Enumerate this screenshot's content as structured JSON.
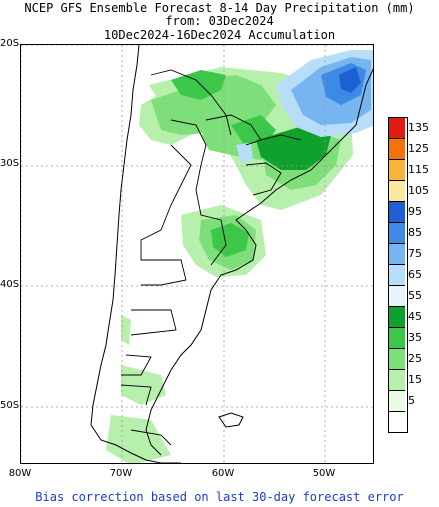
{
  "title": {
    "line1": "NCEP GFS Ensemble Forecast 8-14 Day Precipitation (mm)",
    "line2": "from: 03Dec2024",
    "line3": "10Dec2024-16Dec2024 Accumulation"
  },
  "map": {
    "lat_labels": [
      "20S",
      "30S",
      "40S",
      "50S"
    ],
    "lon_labels": [
      "80W",
      "70W",
      "60W",
      "50W"
    ]
  },
  "legend": {
    "entries": [
      {
        "label": "135",
        "color": "#e01b12"
      },
      {
        "label": "125",
        "color": "#f5700f"
      },
      {
        "label": "115",
        "color": "#f9b23a"
      },
      {
        "label": "105",
        "color": "#fbe9a2"
      },
      {
        "label": "95",
        "color": "#1e5fd2"
      },
      {
        "label": "85",
        "color": "#3c8ae6"
      },
      {
        "label": "75",
        "color": "#76b5ef"
      },
      {
        "label": "65",
        "color": "#b6def8"
      },
      {
        "label": "55",
        "color": "#e4f6fb"
      },
      {
        "label": "45",
        "color": "#10a12d"
      },
      {
        "label": "35",
        "color": "#3cc64a"
      },
      {
        "label": "25",
        "color": "#7ede79"
      },
      {
        "label": "15",
        "color": "#b7efac"
      },
      {
        "label": "5",
        "color": "#e9fbe2"
      },
      {
        "label": "",
        "color": "#ffffff"
      }
    ]
  },
  "footer": "Bias correction based on last 30-day forecast error"
}
